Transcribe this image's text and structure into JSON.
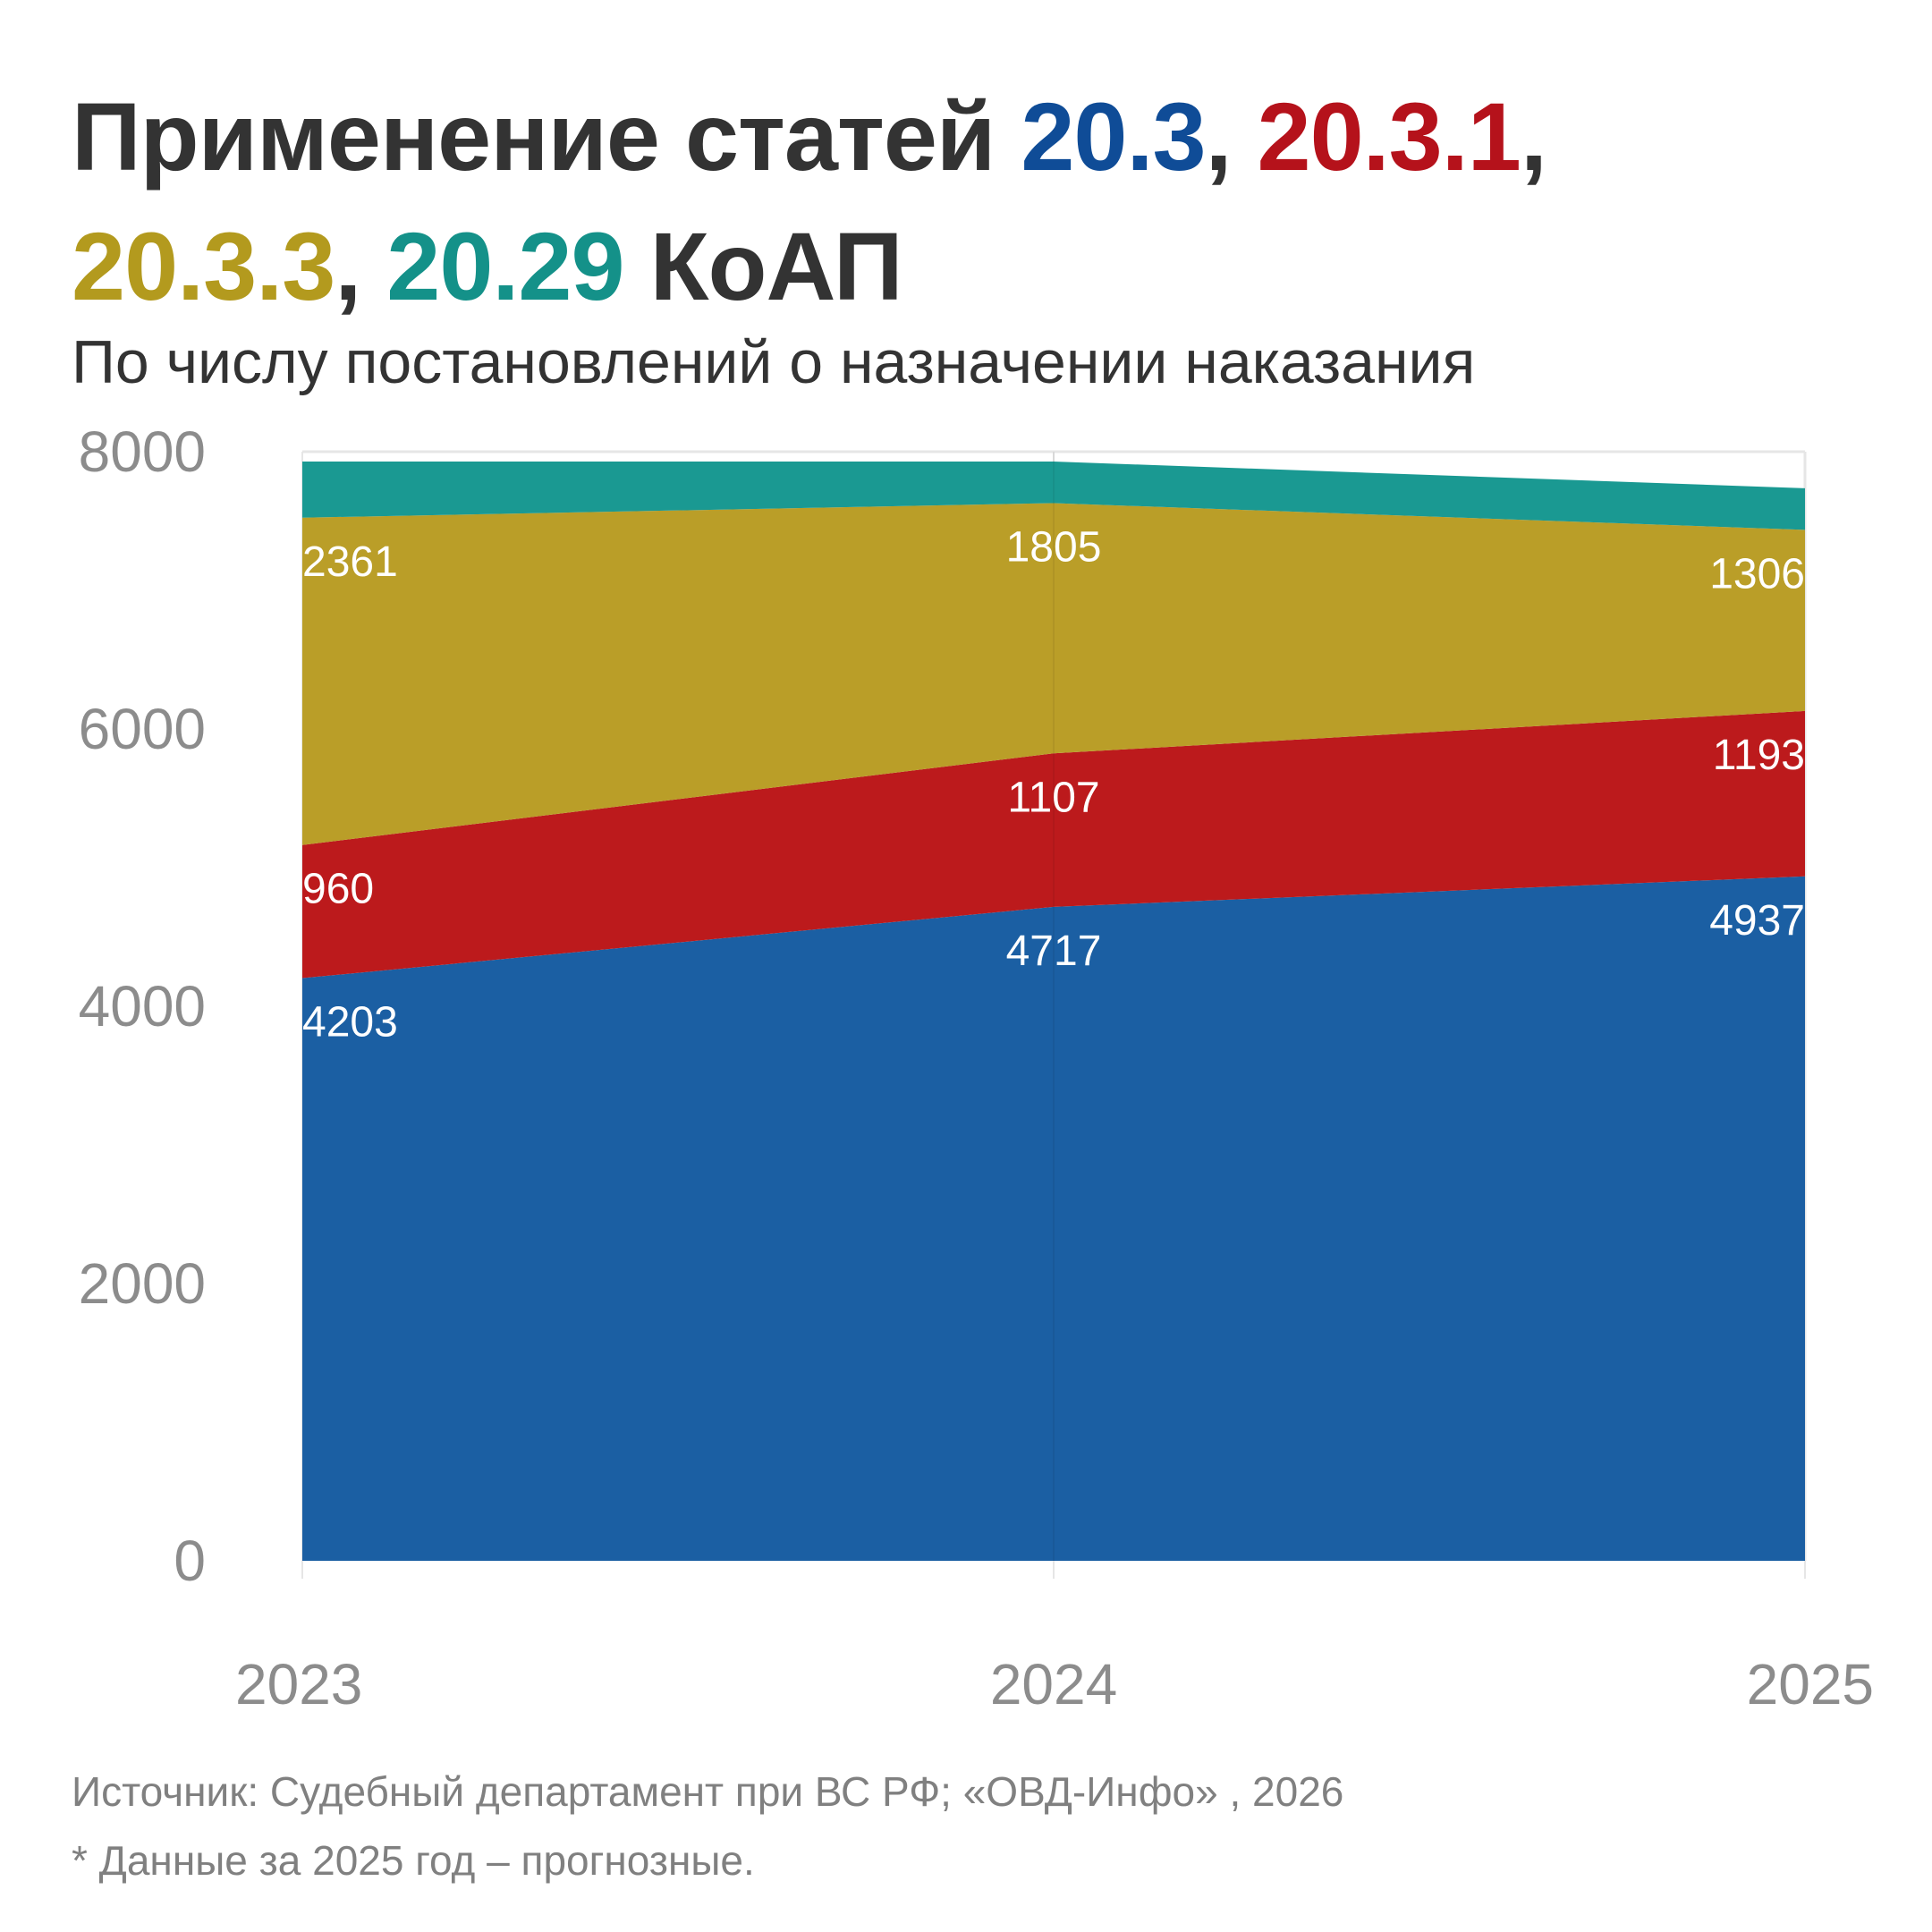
{
  "title": {
    "prefix": "Применение статей ",
    "code_1": "20.3",
    "sep_1": ", ",
    "code_2": "20.3.1",
    "sep_2": ",",
    "code_3": "20.3.3",
    "sep_3": ", ",
    "code_4": "20.29",
    "suffix": " КоАП"
  },
  "subtitle": "По числу постановлений о назначении наказания",
  "footer": {
    "source": "Источник: Судебный департамент при ВС РФ; «ОВД-Инфо» , 2026",
    "note": "* Данные за 2025 год – прогнозные."
  },
  "colors": {
    "title_text": "#333333",
    "series_1": "#1B5FA3",
    "series_2": "#BC1A1C",
    "series_3": "#BA9E28",
    "series_4": "#1A9992",
    "title_20_3": "#0F4C97",
    "title_20_3_1": "#B5121B",
    "title_20_3_3": "#B39A1E",
    "title_20_29": "#149189",
    "axis_text": "#8C8C8C",
    "grid": "#E6E6E6"
  },
  "chart_data": {
    "type": "area",
    "stacked": true,
    "x": [
      "2023",
      "2024",
      "2025"
    ],
    "series": [
      {
        "name": "20.3",
        "values": [
          4203,
          4717,
          4937
        ]
      },
      {
        "name": "20.3.1",
        "values": [
          960,
          1107,
          1193
        ]
      },
      {
        "name": "20.3.3",
        "values": [
          2361,
          1805,
          1306
        ]
      },
      {
        "name": "20.29",
        "values": [
          405,
          300,
          300
        ]
      }
    ],
    "series_labels_shown": [
      true,
      true,
      true,
      false
    ],
    "ylim": [
      0,
      8000
    ],
    "yticks": [
      "0",
      "2000",
      "4000",
      "6000",
      "8000"
    ],
    "xlabel": "",
    "ylabel": "",
    "grid": true,
    "legend": "none"
  }
}
